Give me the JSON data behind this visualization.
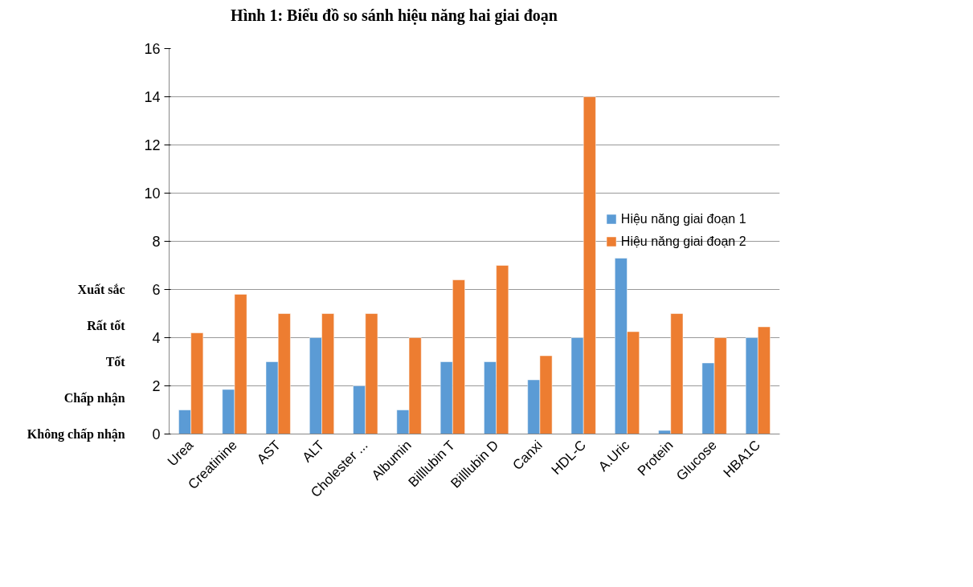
{
  "chart_data": {
    "type": "bar",
    "title": "Hình 1: Biểu đồ so sánh hiệu năng hai giai đoạn",
    "categories": [
      "Urea",
      "Creatinine",
      "AST",
      "ALT",
      "Cholester ...",
      "Albumin",
      "Billlubin T",
      "Billlubin D",
      "Canxi",
      "HDL-C",
      "A.Uric",
      "Protein",
      "Glucose",
      "HBA1C"
    ],
    "series": [
      {
        "name": "Hiệu năng giai đoạn 1",
        "color": "#5b9bd5",
        "values": [
          1,
          1.85,
          3,
          4,
          2,
          1,
          3,
          3,
          2.25,
          4,
          7.3,
          0.15,
          2.95,
          4
        ]
      },
      {
        "name": "Hiệu năng giai đoạn 2",
        "color": "#ed7d31",
        "values": [
          4.2,
          5.8,
          5,
          5,
          5,
          4,
          6.4,
          7,
          3.25,
          14,
          4.25,
          5,
          4,
          4.45
        ]
      }
    ],
    "ylim": [
      0,
      16
    ],
    "yticks": [
      0,
      2,
      4,
      6,
      8,
      10,
      12,
      14,
      16
    ],
    "grid": "y",
    "legend": "right",
    "annotations": [
      "Xuất sắc",
      "Rất tốt",
      "Tốt",
      "Chấp nhận",
      "Không chấp nhận"
    ]
  }
}
